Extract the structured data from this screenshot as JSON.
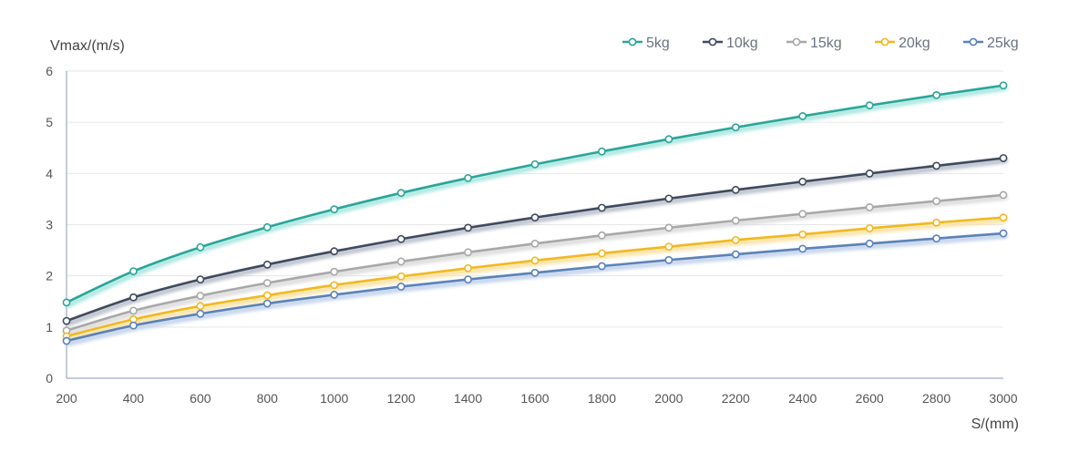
{
  "chart_data": {
    "type": "line",
    "ylabel": "Vmax/(m/s)",
    "xlabel": "S/(mm)",
    "xlim": [
      200,
      3000
    ],
    "ylim": [
      0,
      6
    ],
    "x_ticks": [
      "200",
      "400",
      "600",
      "800",
      "1000",
      "1200",
      "1400",
      "1600",
      "1800",
      "2000",
      "2200",
      "2400",
      "2600",
      "2800",
      "3000"
    ],
    "y_ticks": [
      "0",
      "1",
      "2",
      "3",
      "4",
      "5",
      "6"
    ],
    "grid": "horizontal",
    "legend_position": "top-right",
    "x": [
      200,
      400,
      600,
      800,
      1000,
      1200,
      1400,
      1600,
      1800,
      2000,
      2200,
      2400,
      2600,
      2800,
      3000
    ],
    "series": [
      {
        "name": "5kg",
        "color": "#2aa59a",
        "glow": "#a8e6df",
        "values": [
          1.48,
          2.09,
          2.56,
          2.95,
          3.3,
          3.62,
          3.91,
          4.18,
          4.43,
          4.67,
          4.9,
          5.12,
          5.33,
          5.53,
          5.72
        ]
      },
      {
        "name": "10kg",
        "color": "#3e4a5e",
        "glow": "#b9c0cb",
        "values": [
          1.12,
          1.58,
          1.93,
          2.22,
          2.48,
          2.72,
          2.94,
          3.14,
          3.33,
          3.51,
          3.68,
          3.84,
          4.0,
          4.15,
          4.3
        ]
      },
      {
        "name": "15kg",
        "color": "#a8a8a8",
        "glow": "#dcdcdc",
        "values": [
          0.93,
          1.32,
          1.61,
          1.86,
          2.08,
          2.28,
          2.46,
          2.63,
          2.79,
          2.94,
          3.08,
          3.21,
          3.34,
          3.46,
          3.58
        ]
      },
      {
        "name": "20kg",
        "color": "#f2b81f",
        "glow": "#f9e2a3",
        "values": [
          0.82,
          1.15,
          1.41,
          1.62,
          1.82,
          1.99,
          2.15,
          2.3,
          2.44,
          2.57,
          2.7,
          2.81,
          2.93,
          3.04,
          3.14
        ]
      },
      {
        "name": "25kg",
        "color": "#5b82b8",
        "glow": "#c3d3ea",
        "values": [
          0.73,
          1.03,
          1.26,
          1.46,
          1.63,
          1.79,
          1.93,
          2.06,
          2.19,
          2.31,
          2.42,
          2.53,
          2.63,
          2.73,
          2.83
        ]
      }
    ]
  }
}
